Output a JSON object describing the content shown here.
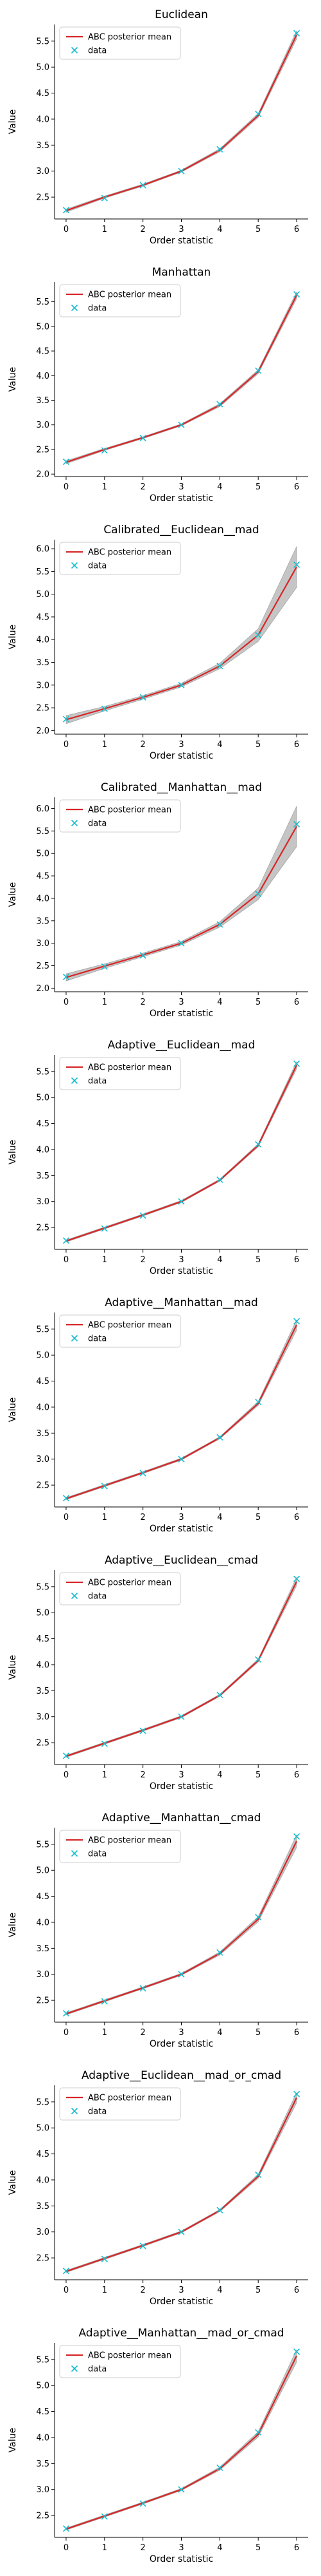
{
  "chart_data": [
    {
      "type": "line",
      "title": "Euclidean",
      "xlabel": "Order statistic",
      "ylabel": "Value",
      "x": [
        0,
        1,
        2,
        3,
        4,
        5,
        6
      ],
      "xlim": [
        -0.3,
        6.3
      ],
      "ylim": [
        2.08,
        5.82
      ],
      "yticks": [
        2.5,
        3.0,
        3.5,
        4.0,
        4.5,
        5.0,
        5.5
      ],
      "ytick_labels": [
        "2.5",
        "3.0",
        "3.5",
        "4.0",
        "4.5",
        "5.0",
        "5.5"
      ],
      "xtick_labels": [
        "0",
        "1",
        "2",
        "3",
        "4",
        "5",
        "6"
      ],
      "legend": [
        "ABC posterior mean",
        "data"
      ],
      "legend_position": "upper-left",
      "band_spread": [
        0.03,
        0.02,
        0.02,
        0.02,
        0.03,
        0.04,
        0.08
      ],
      "series": [
        {
          "name": "ABC posterior mean",
          "style": "line",
          "color": "#d62728",
          "values": [
            2.24,
            2.5,
            2.73,
            3.0,
            3.4,
            4.07,
            5.62
          ]
        },
        {
          "name": "data",
          "style": "marker-x",
          "color": "#17becf",
          "values": [
            2.25,
            2.48,
            2.73,
            3.0,
            3.42,
            4.1,
            5.65
          ]
        }
      ]
    },
    {
      "type": "line",
      "title": "Manhattan",
      "xlabel": "Order statistic",
      "ylabel": "Value",
      "x": [
        0,
        1,
        2,
        3,
        4,
        5,
        6
      ],
      "xlim": [
        -0.3,
        6.3
      ],
      "ylim": [
        1.95,
        5.9
      ],
      "yticks": [
        2.0,
        2.5,
        3.0,
        3.5,
        4.0,
        4.5,
        5.0,
        5.5
      ],
      "ytick_labels": [
        "2.0",
        "2.5",
        "3.0",
        "3.5",
        "4.0",
        "4.5",
        "5.0",
        "5.5"
      ],
      "xtick_labels": [
        "0",
        "1",
        "2",
        "3",
        "4",
        "5",
        "6"
      ],
      "legend": [
        "ABC posterior mean",
        "data"
      ],
      "legend_position": "upper-left",
      "band_spread": [
        0.03,
        0.02,
        0.02,
        0.02,
        0.03,
        0.04,
        0.07
      ],
      "series": [
        {
          "name": "ABC posterior mean",
          "style": "line",
          "color": "#d62728",
          "values": [
            2.24,
            2.5,
            2.74,
            3.0,
            3.4,
            4.08,
            5.63
          ]
        },
        {
          "name": "data",
          "style": "marker-x",
          "color": "#17becf",
          "values": [
            2.25,
            2.48,
            2.73,
            3.0,
            3.42,
            4.1,
            5.65
          ]
        }
      ]
    },
    {
      "type": "line",
      "title": "Calibrated__Euclidean__mad",
      "xlabel": "Order statistic",
      "ylabel": "Value",
      "x": [
        0,
        1,
        2,
        3,
        4,
        5,
        6
      ],
      "xlim": [
        -0.3,
        6.3
      ],
      "ylim": [
        1.92,
        6.2
      ],
      "yticks": [
        2.0,
        2.5,
        3.0,
        3.5,
        4.0,
        4.5,
        5.0,
        5.5,
        6.0
      ],
      "ytick_labels": [
        "2.0",
        "2.5",
        "3.0",
        "3.5",
        "4.0",
        "4.5",
        "5.0",
        "5.5",
        "6.0"
      ],
      "xtick_labels": [
        "0",
        "1",
        "2",
        "3",
        "4",
        "5",
        "6"
      ],
      "legend": [
        "ABC posterior mean",
        "data"
      ],
      "legend_position": "upper-left",
      "band_spread": [
        0.09,
        0.05,
        0.04,
        0.04,
        0.06,
        0.14,
        0.45
      ],
      "series": [
        {
          "name": "ABC posterior mean",
          "style": "line",
          "color": "#d62728",
          "values": [
            2.24,
            2.48,
            2.73,
            3.0,
            3.42,
            4.1,
            5.6
          ]
        },
        {
          "name": "data",
          "style": "marker-x",
          "color": "#17becf",
          "values": [
            2.25,
            2.48,
            2.73,
            3.0,
            3.42,
            4.1,
            5.65
          ]
        }
      ]
    },
    {
      "type": "line",
      "title": "Calibrated__Manhattan__mad",
      "xlabel": "Order statistic",
      "ylabel": "Value",
      "x": [
        0,
        1,
        2,
        3,
        4,
        5,
        6
      ],
      "xlim": [
        -0.3,
        6.3
      ],
      "ylim": [
        1.92,
        6.25
      ],
      "yticks": [
        2.0,
        2.5,
        3.0,
        3.5,
        4.0,
        4.5,
        5.0,
        5.5,
        6.0
      ],
      "ytick_labels": [
        "2.0",
        "2.5",
        "3.0",
        "3.5",
        "4.0",
        "4.5",
        "5.0",
        "5.5",
        "6.0"
      ],
      "xtick_labels": [
        "0",
        "1",
        "2",
        "3",
        "4",
        "5",
        "6"
      ],
      "legend": [
        "ABC posterior mean",
        "data"
      ],
      "legend_position": "upper-left",
      "band_spread": [
        0.08,
        0.05,
        0.04,
        0.04,
        0.06,
        0.13,
        0.45
      ],
      "series": [
        {
          "name": "ABC posterior mean",
          "style": "line",
          "color": "#d62728",
          "values": [
            2.24,
            2.49,
            2.74,
            3.0,
            3.42,
            4.1,
            5.6
          ]
        },
        {
          "name": "data",
          "style": "marker-x",
          "color": "#17becf",
          "values": [
            2.25,
            2.48,
            2.73,
            3.0,
            3.42,
            4.1,
            5.65
          ]
        }
      ]
    },
    {
      "type": "line",
      "title": "Adaptive__Euclidean__mad",
      "xlabel": "Order statistic",
      "ylabel": "Value",
      "x": [
        0,
        1,
        2,
        3,
        4,
        5,
        6
      ],
      "xlim": [
        -0.3,
        6.3
      ],
      "ylim": [
        2.08,
        5.82
      ],
      "yticks": [
        2.5,
        3.0,
        3.5,
        4.0,
        4.5,
        5.0,
        5.5
      ],
      "ytick_labels": [
        "2.5",
        "3.0",
        "3.5",
        "4.0",
        "4.5",
        "5.0",
        "5.5"
      ],
      "xtick_labels": [
        "0",
        "1",
        "2",
        "3",
        "4",
        "5",
        "6"
      ],
      "legend": [
        "ABC posterior mean",
        "data"
      ],
      "legend_position": "upper-left",
      "band_spread": [
        0.02,
        0.02,
        0.02,
        0.02,
        0.02,
        0.03,
        0.07
      ],
      "series": [
        {
          "name": "ABC posterior mean",
          "style": "line",
          "color": "#d62728",
          "values": [
            2.24,
            2.49,
            2.74,
            3.0,
            3.41,
            4.08,
            5.62
          ]
        },
        {
          "name": "data",
          "style": "marker-x",
          "color": "#17becf",
          "values": [
            2.25,
            2.48,
            2.73,
            3.0,
            3.42,
            4.1,
            5.65
          ]
        }
      ]
    },
    {
      "type": "line",
      "title": "Adaptive__Manhattan__mad",
      "xlabel": "Order statistic",
      "ylabel": "Value",
      "x": [
        0,
        1,
        2,
        3,
        4,
        5,
        6
      ],
      "xlim": [
        -0.3,
        6.3
      ],
      "ylim": [
        2.08,
        5.82
      ],
      "yticks": [
        2.5,
        3.0,
        3.5,
        4.0,
        4.5,
        5.0,
        5.5
      ],
      "ytick_labels": [
        "2.5",
        "3.0",
        "3.5",
        "4.0",
        "4.5",
        "5.0",
        "5.5"
      ],
      "xtick_labels": [
        "0",
        "1",
        "2",
        "3",
        "4",
        "5",
        "6"
      ],
      "legend": [
        "ABC posterior mean",
        "data"
      ],
      "legend_position": "upper-left",
      "band_spread": [
        0.02,
        0.02,
        0.02,
        0.02,
        0.02,
        0.04,
        0.1
      ],
      "series": [
        {
          "name": "ABC posterior mean",
          "style": "line",
          "color": "#d62728",
          "values": [
            2.24,
            2.49,
            2.74,
            3.0,
            3.41,
            4.07,
            5.58
          ]
        },
        {
          "name": "data",
          "style": "marker-x",
          "color": "#17becf",
          "values": [
            2.25,
            2.48,
            2.73,
            3.0,
            3.42,
            4.1,
            5.65
          ]
        }
      ]
    },
    {
      "type": "line",
      "title": "Adaptive__Euclidean__cmad",
      "xlabel": "Order statistic",
      "ylabel": "Value",
      "x": [
        0,
        1,
        2,
        3,
        4,
        5,
        6
      ],
      "xlim": [
        -0.3,
        6.3
      ],
      "ylim": [
        2.08,
        5.82
      ],
      "yticks": [
        2.5,
        3.0,
        3.5,
        4.0,
        4.5,
        5.0,
        5.5
      ],
      "ytick_labels": [
        "2.5",
        "3.0",
        "3.5",
        "4.0",
        "4.5",
        "5.0",
        "5.5"
      ],
      "xtick_labels": [
        "0",
        "1",
        "2",
        "3",
        "4",
        "5",
        "6"
      ],
      "legend": [
        "ABC posterior mean",
        "data"
      ],
      "legend_position": "upper-left",
      "band_spread": [
        0.02,
        0.02,
        0.02,
        0.02,
        0.02,
        0.03,
        0.08
      ],
      "series": [
        {
          "name": "ABC posterior mean",
          "style": "line",
          "color": "#d62728",
          "values": [
            2.24,
            2.49,
            2.74,
            3.0,
            3.41,
            4.08,
            5.6
          ]
        },
        {
          "name": "data",
          "style": "marker-x",
          "color": "#17becf",
          "values": [
            2.25,
            2.48,
            2.73,
            3.0,
            3.42,
            4.1,
            5.65
          ]
        }
      ]
    },
    {
      "type": "line",
      "title": "Adaptive__Manhattan__cmad",
      "xlabel": "Order statistic",
      "ylabel": "Value",
      "x": [
        0,
        1,
        2,
        3,
        4,
        5,
        6
      ],
      "xlim": [
        -0.3,
        6.3
      ],
      "ylim": [
        2.08,
        5.82
      ],
      "yticks": [
        2.5,
        3.0,
        3.5,
        4.0,
        4.5,
        5.0,
        5.5
      ],
      "ytick_labels": [
        "2.5",
        "3.0",
        "3.5",
        "4.0",
        "4.5",
        "5.0",
        "5.5"
      ],
      "xtick_labels": [
        "0",
        "1",
        "2",
        "3",
        "4",
        "5",
        "6"
      ],
      "legend": [
        "ABC posterior mean",
        "data"
      ],
      "legend_position": "upper-left",
      "band_spread": [
        0.02,
        0.02,
        0.02,
        0.02,
        0.03,
        0.05,
        0.12
      ],
      "series": [
        {
          "name": "ABC posterior mean",
          "style": "line",
          "color": "#d62728",
          "values": [
            2.24,
            2.49,
            2.74,
            3.0,
            3.4,
            4.06,
            5.56
          ]
        },
        {
          "name": "data",
          "style": "marker-x",
          "color": "#17becf",
          "values": [
            2.25,
            2.48,
            2.73,
            3.0,
            3.42,
            4.1,
            5.65
          ]
        }
      ]
    },
    {
      "type": "line",
      "title": "Adaptive__Euclidean__mad_or_cmad",
      "xlabel": "Order statistic",
      "ylabel": "Value",
      "x": [
        0,
        1,
        2,
        3,
        4,
        5,
        6
      ],
      "xlim": [
        -0.3,
        6.3
      ],
      "ylim": [
        2.08,
        5.82
      ],
      "yticks": [
        2.5,
        3.0,
        3.5,
        4.0,
        4.5,
        5.0,
        5.5
      ],
      "ytick_labels": [
        "2.5",
        "3.0",
        "3.5",
        "4.0",
        "4.5",
        "5.0",
        "5.5"
      ],
      "xtick_labels": [
        "0",
        "1",
        "2",
        "3",
        "4",
        "5",
        "6"
      ],
      "legend": [
        "ABC posterior mean",
        "data"
      ],
      "legend_position": "upper-left",
      "band_spread": [
        0.02,
        0.02,
        0.02,
        0.02,
        0.02,
        0.04,
        0.1
      ],
      "series": [
        {
          "name": "ABC posterior mean",
          "style": "line",
          "color": "#d62728",
          "values": [
            2.24,
            2.49,
            2.74,
            3.0,
            3.41,
            4.07,
            5.58
          ]
        },
        {
          "name": "data",
          "style": "marker-x",
          "color": "#17becf",
          "values": [
            2.25,
            2.48,
            2.73,
            3.0,
            3.42,
            4.1,
            5.65
          ]
        }
      ]
    },
    {
      "type": "line",
      "title": "Adaptive__Manhattan__mad_or_cmad",
      "xlabel": "Order statistic",
      "ylabel": "Value",
      "x": [
        0,
        1,
        2,
        3,
        4,
        5,
        6
      ],
      "xlim": [
        -0.3,
        6.3
      ],
      "ylim": [
        2.08,
        5.82
      ],
      "yticks": [
        2.5,
        3.0,
        3.5,
        4.0,
        4.5,
        5.0,
        5.5
      ],
      "ytick_labels": [
        "2.5",
        "3.0",
        "3.5",
        "4.0",
        "4.5",
        "5.0",
        "5.5"
      ],
      "xtick_labels": [
        "0",
        "1",
        "2",
        "3",
        "4",
        "5",
        "6"
      ],
      "legend": [
        "ABC posterior mean",
        "data"
      ],
      "legend_position": "upper-left",
      "band_spread": [
        0.02,
        0.02,
        0.02,
        0.02,
        0.03,
        0.05,
        0.12
      ],
      "series": [
        {
          "name": "ABC posterior mean",
          "style": "line",
          "color": "#d62728",
          "values": [
            2.24,
            2.49,
            2.74,
            3.0,
            3.4,
            4.06,
            5.57
          ]
        },
        {
          "name": "data",
          "style": "marker-x",
          "color": "#17becf",
          "values": [
            2.25,
            2.48,
            2.73,
            3.0,
            3.42,
            4.1,
            5.65
          ]
        }
      ]
    }
  ]
}
